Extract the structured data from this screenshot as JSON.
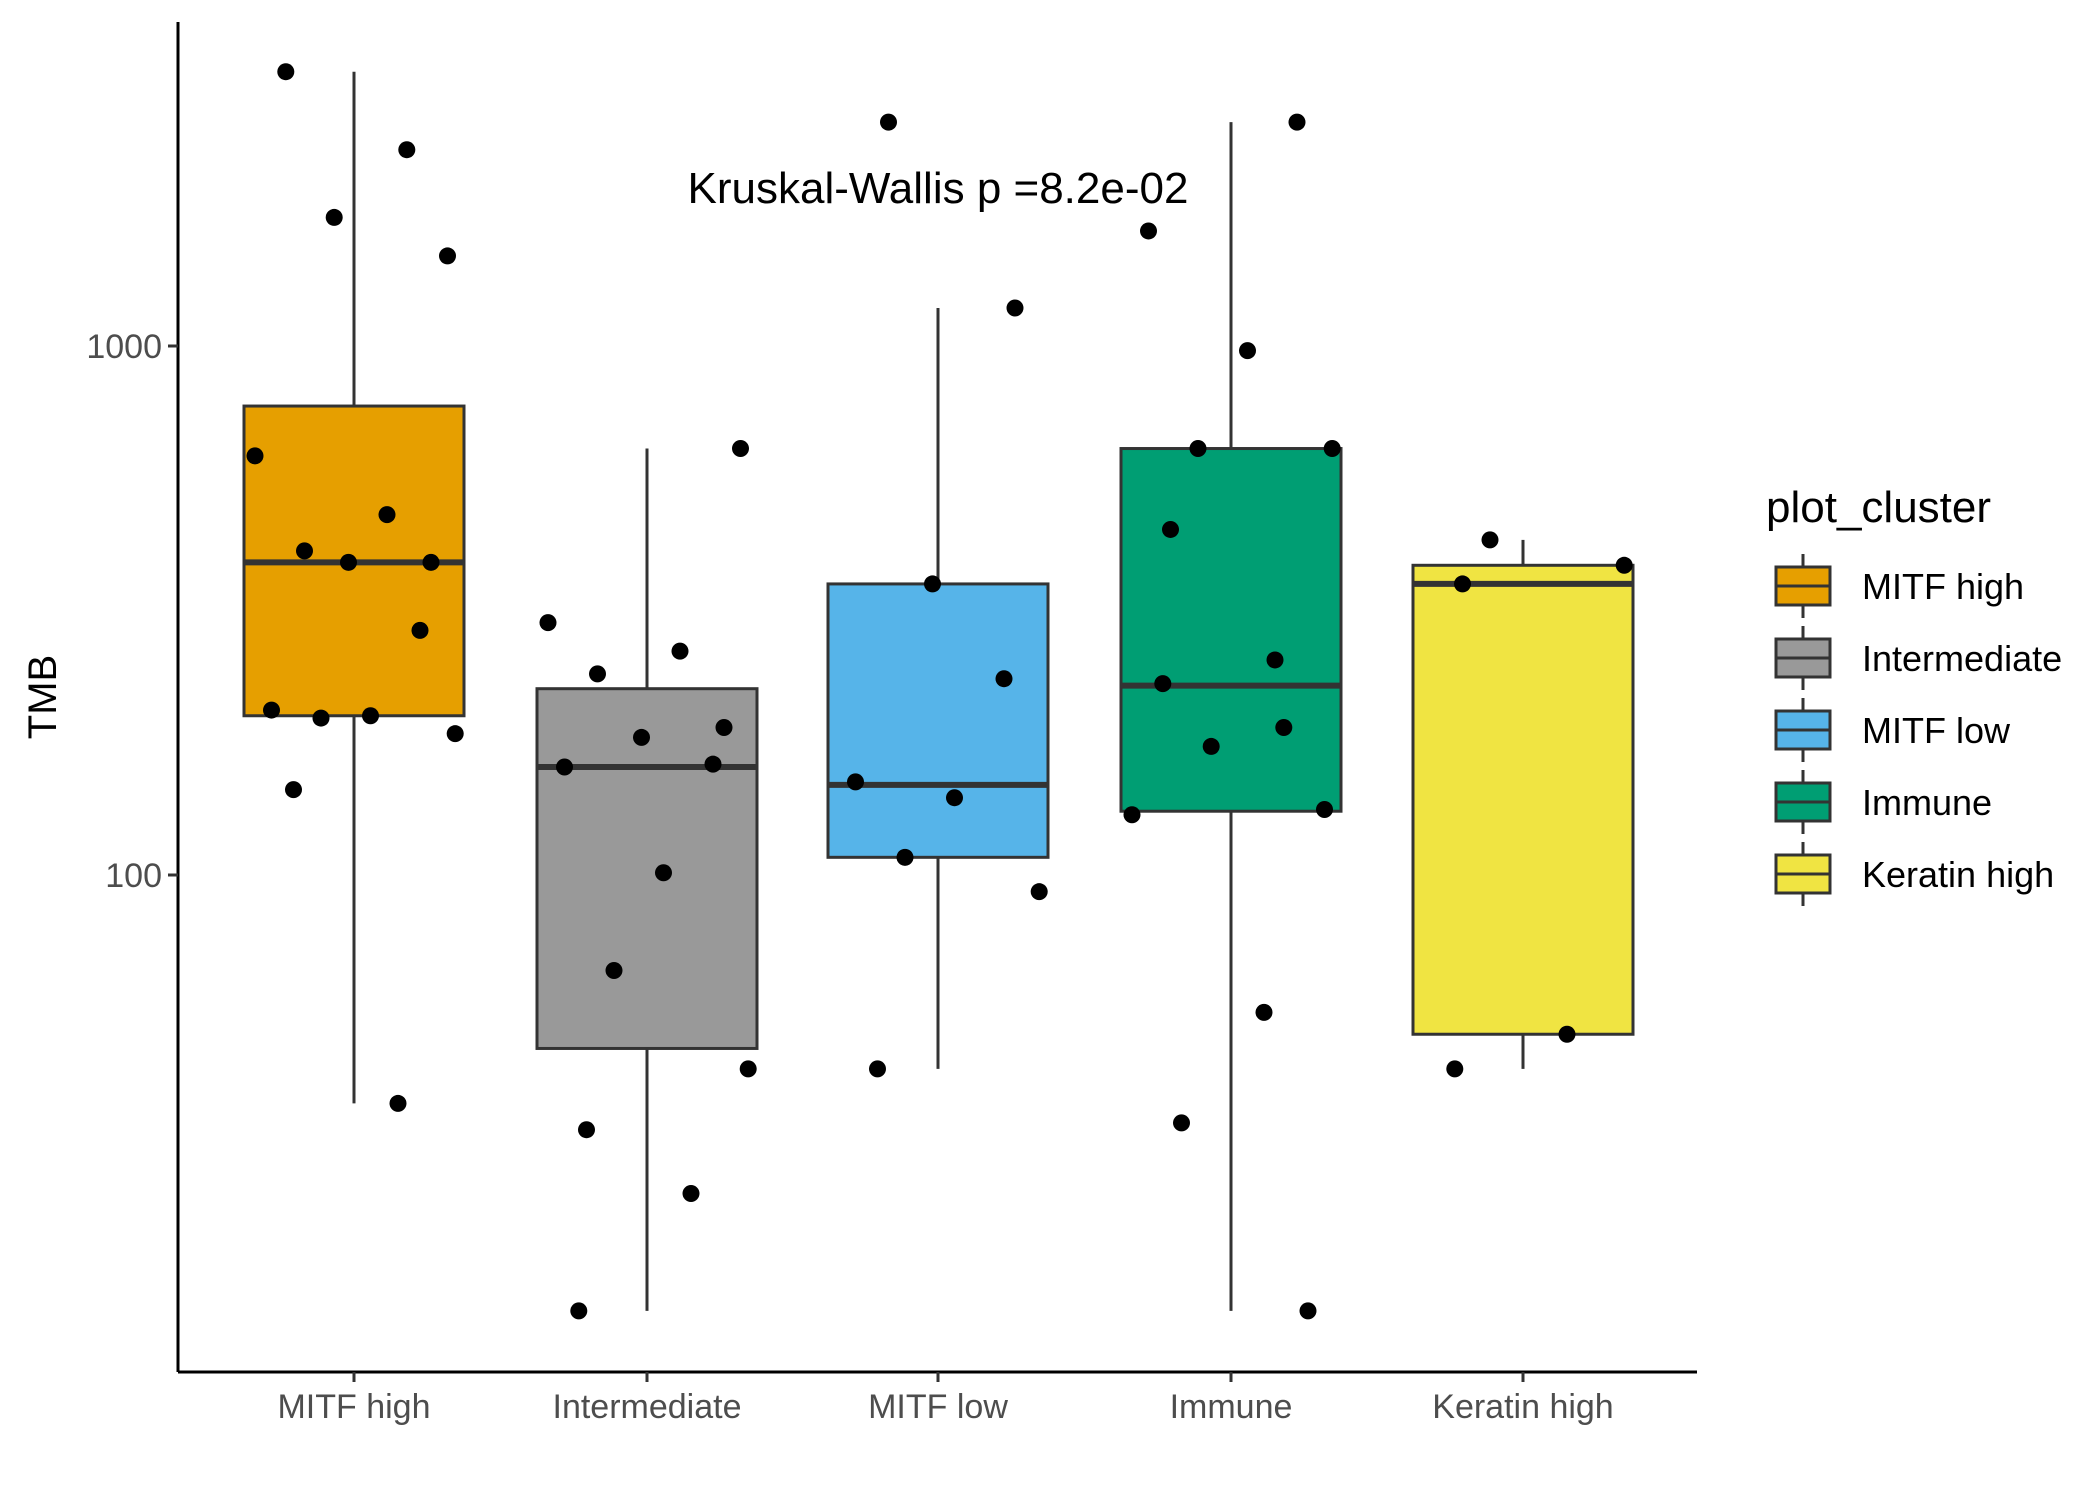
{
  "chart_data": {
    "type": "box",
    "ylabel": "TMB",
    "y_scale": "log10",
    "ylim": [
      14,
      3600
    ],
    "y_ticks": [
      100,
      1000
    ],
    "y_tick_labels": [
      "100",
      "1000"
    ],
    "categories": [
      "MITF high",
      "Intermediate",
      "MITF low",
      "Immune",
      "Keratin high"
    ],
    "colors": [
      "#E69F00",
      "#999999",
      "#56B4E9",
      "#009E73",
      "#F0E442"
    ],
    "boxes": [
      {
        "category": "MITF high",
        "whisker_low": 37,
        "q1": 200,
        "median": 390,
        "q3": 770,
        "whisker_high": 3300
      },
      {
        "category": "Intermediate",
        "whisker_low": 15,
        "q1": 47,
        "median": 160,
        "q3": 225,
        "whisker_high": 640
      },
      {
        "category": "MITF low",
        "whisker_low": 43,
        "q1": 108,
        "median": 148,
        "q3": 355,
        "whisker_high": 1180
      },
      {
        "category": "Immune",
        "whisker_low": 15,
        "q1": 132,
        "median": 228,
        "q3": 640,
        "whisker_high": 2650
      },
      {
        "category": "Keratin high",
        "whisker_low": 43,
        "q1": 50,
        "median": 355,
        "q3": 385,
        "whisker_high": 430
      }
    ],
    "points": [
      {
        "category": "MITF high",
        "values": [
          3300,
          2350,
          1750,
          1480,
          620,
          480,
          410,
          390,
          390,
          290,
          205,
          200,
          198,
          185,
          145,
          37
        ]
      },
      {
        "category": "Intermediate",
        "values": [
          640,
          300,
          265,
          240,
          190,
          182,
          162,
          160,
          101,
          66,
          43,
          33,
          25,
          15
        ]
      },
      {
        "category": "MITF low",
        "values": [
          2650,
          1180,
          355,
          235,
          150,
          140,
          108,
          93,
          43
        ]
      },
      {
        "category": "Immune",
        "values": [
          2650,
          1650,
          980,
          640,
          640,
          450,
          255,
          230,
          190,
          175,
          133,
          130,
          55,
          34,
          15
        ]
      },
      {
        "category": "Keratin high",
        "values": [
          430,
          385,
          355,
          50,
          43
        ]
      }
    ],
    "annotation": "Kruskal-Wallis p =8.2e-02",
    "legend": {
      "title": "plot_cluster",
      "position": "right",
      "entries": [
        "MITF high",
        "Intermediate",
        "MITF low",
        "Immune",
        "Keratin high"
      ]
    },
    "grid": false
  }
}
